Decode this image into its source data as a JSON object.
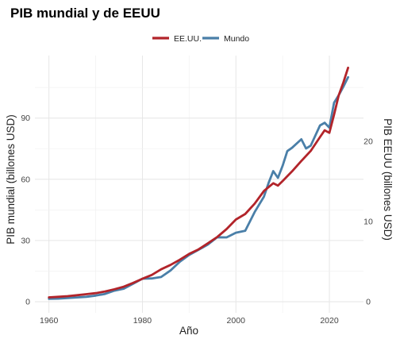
{
  "chart_data": {
    "type": "line",
    "title": "PIB mundial y de EEUU",
    "xlabel": "Año",
    "ylabel": "PIB mundial (billones USD)",
    "y2label": "PIB EEUU (billones USD)",
    "xlim": [
      1960,
      2024
    ],
    "ylim": [
      0,
      110
    ],
    "y2lim": [
      0,
      29.3
    ],
    "x_ticks": [
      1960,
      1980,
      2000,
      2020
    ],
    "y_ticks": [
      0,
      30,
      60,
      90
    ],
    "y2_ticks": [
      0,
      10,
      20
    ],
    "grid": true,
    "legend_position": "top",
    "series": [
      {
        "name": "EE.UU.",
        "axis": "right",
        "color": "#b2242a",
        "x": [
          1960,
          1962,
          1964,
          1966,
          1968,
          1970,
          1972,
          1974,
          1976,
          1978,
          1980,
          1982,
          1984,
          1986,
          1988,
          1990,
          1992,
          1994,
          1996,
          1998,
          2000,
          2002,
          2004,
          2006,
          2008,
          2009,
          2010,
          2012,
          2014,
          2016,
          2018,
          2019,
          2020,
          2021,
          2022,
          2023,
          2024
        ],
        "values": [
          0.54,
          0.61,
          0.69,
          0.81,
          0.94,
          1.07,
          1.28,
          1.55,
          1.87,
          2.35,
          2.86,
          3.34,
          4.04,
          4.58,
          5.24,
          5.96,
          6.52,
          7.29,
          8.07,
          9.06,
          10.25,
          10.94,
          12.22,
          13.81,
          14.77,
          14.48,
          15.05,
          16.25,
          17.55,
          18.8,
          20.53,
          21.38,
          21.06,
          23.32,
          25.74,
          27.36,
          29.18
        ]
      },
      {
        "name": "Mundo",
        "axis": "left",
        "color": "#4a7fa8",
        "x": [
          1960,
          1962,
          1964,
          1966,
          1968,
          1970,
          1972,
          1974,
          1976,
          1978,
          1980,
          1982,
          1984,
          1986,
          1988,
          1990,
          1992,
          1994,
          1996,
          1998,
          2000,
          2002,
          2004,
          2006,
          2007,
          2008,
          2009,
          2010,
          2011,
          2012,
          2014,
          2015,
          2016,
          2018,
          2019,
          2020,
          2021,
          2022,
          2023,
          2024
        ],
        "values": [
          1.4,
          1.5,
          1.8,
          2.1,
          2.4,
          3.0,
          3.8,
          5.4,
          6.4,
          8.8,
          11.3,
          11.4,
          12.1,
          15.3,
          19.6,
          22.9,
          25.4,
          28.0,
          31.6,
          31.5,
          33.8,
          34.8,
          43.9,
          51.5,
          58.3,
          64.0,
          60.7,
          66.6,
          73.8,
          75.4,
          79.6,
          75.1,
          76.5,
          86.4,
          87.7,
          85.3,
          97.5,
          101.2,
          105.4,
          110.0
        ]
      }
    ]
  }
}
